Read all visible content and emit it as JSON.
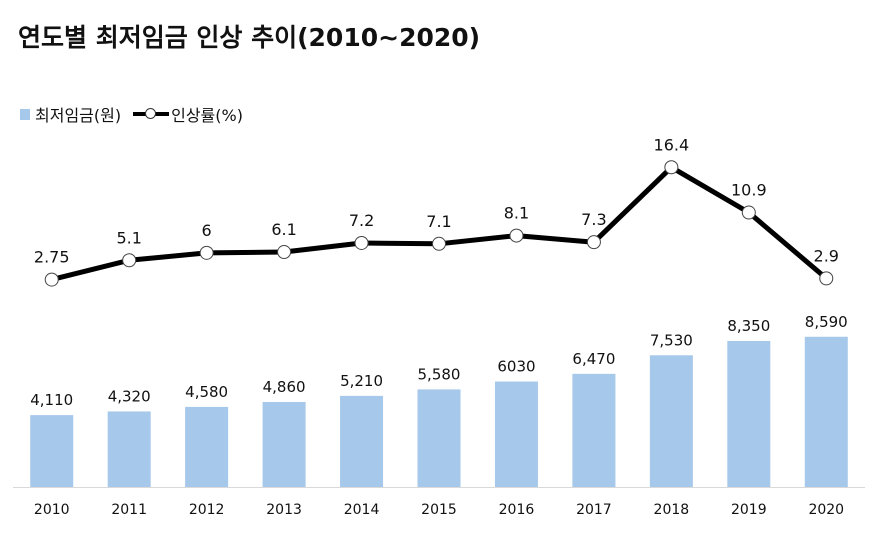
{
  "chart_data": {
    "type": "bar",
    "title": "연도별 최저임금 인상 추이(2010~2020)",
    "categories": [
      "2010",
      "2011",
      "2012",
      "2013",
      "2014",
      "2015",
      "2016",
      "2017",
      "2018",
      "2019",
      "2020"
    ],
    "series": [
      {
        "name": "최저임금(원)",
        "type": "bar",
        "values": [
          4110,
          4320,
          4580,
          4860,
          5210,
          5580,
          6030,
          6470,
          7530,
          8350,
          8590
        ],
        "labels": [
          "4,110",
          "4,320",
          "4,580",
          "4,860",
          "5,210",
          "5,580",
          "6030",
          "6,470",
          "7,530",
          "8,350",
          "8,590"
        ]
      },
      {
        "name": "인상률(%)",
        "type": "line",
        "values": [
          2.75,
          5.1,
          6,
          6.1,
          7.2,
          7.1,
          8.1,
          7.3,
          16.4,
          10.9,
          2.9
        ],
        "labels": [
          "2.75",
          "5.1",
          "6",
          "6.1",
          "7.2",
          "7.1",
          "8.1",
          "7.3",
          "16.4",
          "10.9",
          "2.9"
        ]
      }
    ],
    "legend": "top-left",
    "grid": false
  },
  "colors": {
    "bar": "#a6c8ea",
    "line": "#000000",
    "marker_fill": "#ffffff",
    "axis": "#d9d9d9"
  }
}
